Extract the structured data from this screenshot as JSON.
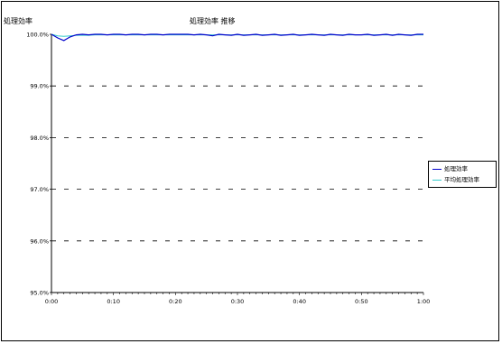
{
  "chart_data": {
    "type": "line",
    "title": "処理効率 推移",
    "ylabel": "処理効率",
    "xlabel": "",
    "ylim": [
      95.0,
      100.0
    ],
    "y_ticks": [
      "95.0%",
      "96.0%",
      "97.0%",
      "98.0%",
      "99.0%",
      "100.0%"
    ],
    "x_ticks": [
      "0:00",
      "0:10",
      "0:20",
      "0:30",
      "0:40",
      "0:50",
      "1:00"
    ],
    "grid": "horizontal dashed",
    "legend_position": "right",
    "x": [
      "0:00",
      "0:01",
      "0:02",
      "0:03",
      "0:04",
      "0:05",
      "0:06",
      "0:07",
      "0:08",
      "0:09",
      "0:10",
      "0:11",
      "0:12",
      "0:13",
      "0:14",
      "0:15",
      "0:16",
      "0:17",
      "0:18",
      "0:19",
      "0:20",
      "0:21",
      "0:22",
      "0:23",
      "0:24",
      "0:25",
      "0:26",
      "0:27",
      "0:28",
      "0:29",
      "0:30",
      "0:31",
      "0:32",
      "0:33",
      "0:34",
      "0:35",
      "0:36",
      "0:37",
      "0:38",
      "0:39",
      "0:40",
      "0:41",
      "0:42",
      "0:43",
      "0:44",
      "0:45",
      "0:46",
      "0:47",
      "0:48",
      "0:49",
      "0:50",
      "0:51",
      "0:52",
      "0:53",
      "0:54",
      "0:55",
      "0:56",
      "0:57",
      "0:58",
      "0:59",
      "1:00"
    ],
    "series": [
      {
        "name": "処理効率",
        "color": "#0000cc",
        "values": [
          100.0,
          99.93,
          99.88,
          99.95,
          99.99,
          100.0,
          99.99,
          100.0,
          100.0,
          99.99,
          100.0,
          100.0,
          99.99,
          100.0,
          100.0,
          99.99,
          100.0,
          100.0,
          99.99,
          100.0,
          100.0,
          100.0,
          100.0,
          99.99,
          100.0,
          99.99,
          99.97,
          100.0,
          99.99,
          99.98,
          100.0,
          99.98,
          99.99,
          100.0,
          99.98,
          99.99,
          100.0,
          99.98,
          99.99,
          100.0,
          99.98,
          99.99,
          100.0,
          99.99,
          99.98,
          100.0,
          99.99,
          99.98,
          100.0,
          99.99,
          99.99,
          100.0,
          99.98,
          99.99,
          100.0,
          99.98,
          100.0,
          99.99,
          99.98,
          100.0,
          100.0
        ]
      },
      {
        "name": "平均処理効率",
        "color": "#33cccc",
        "values": [
          100.0,
          99.97,
          99.96,
          99.97,
          99.98,
          99.98,
          99.98,
          99.99,
          99.99,
          99.99,
          99.99,
          99.99,
          99.99,
          99.99,
          99.99,
          99.99,
          99.99,
          99.99,
          99.99,
          99.99,
          99.99,
          99.99,
          99.99,
          99.99,
          99.99,
          99.99,
          99.99,
          99.99,
          99.99,
          99.99,
          99.99,
          99.99,
          99.99,
          99.99,
          99.99,
          99.99,
          99.99,
          99.99,
          99.99,
          99.99,
          99.99,
          99.99,
          99.99,
          99.99,
          99.99,
          99.99,
          99.99,
          99.99,
          99.99,
          99.99,
          99.99,
          99.99,
          99.99,
          99.99,
          99.99,
          99.99,
          99.99,
          99.99,
          99.99,
          99.99,
          99.99
        ]
      }
    ]
  }
}
